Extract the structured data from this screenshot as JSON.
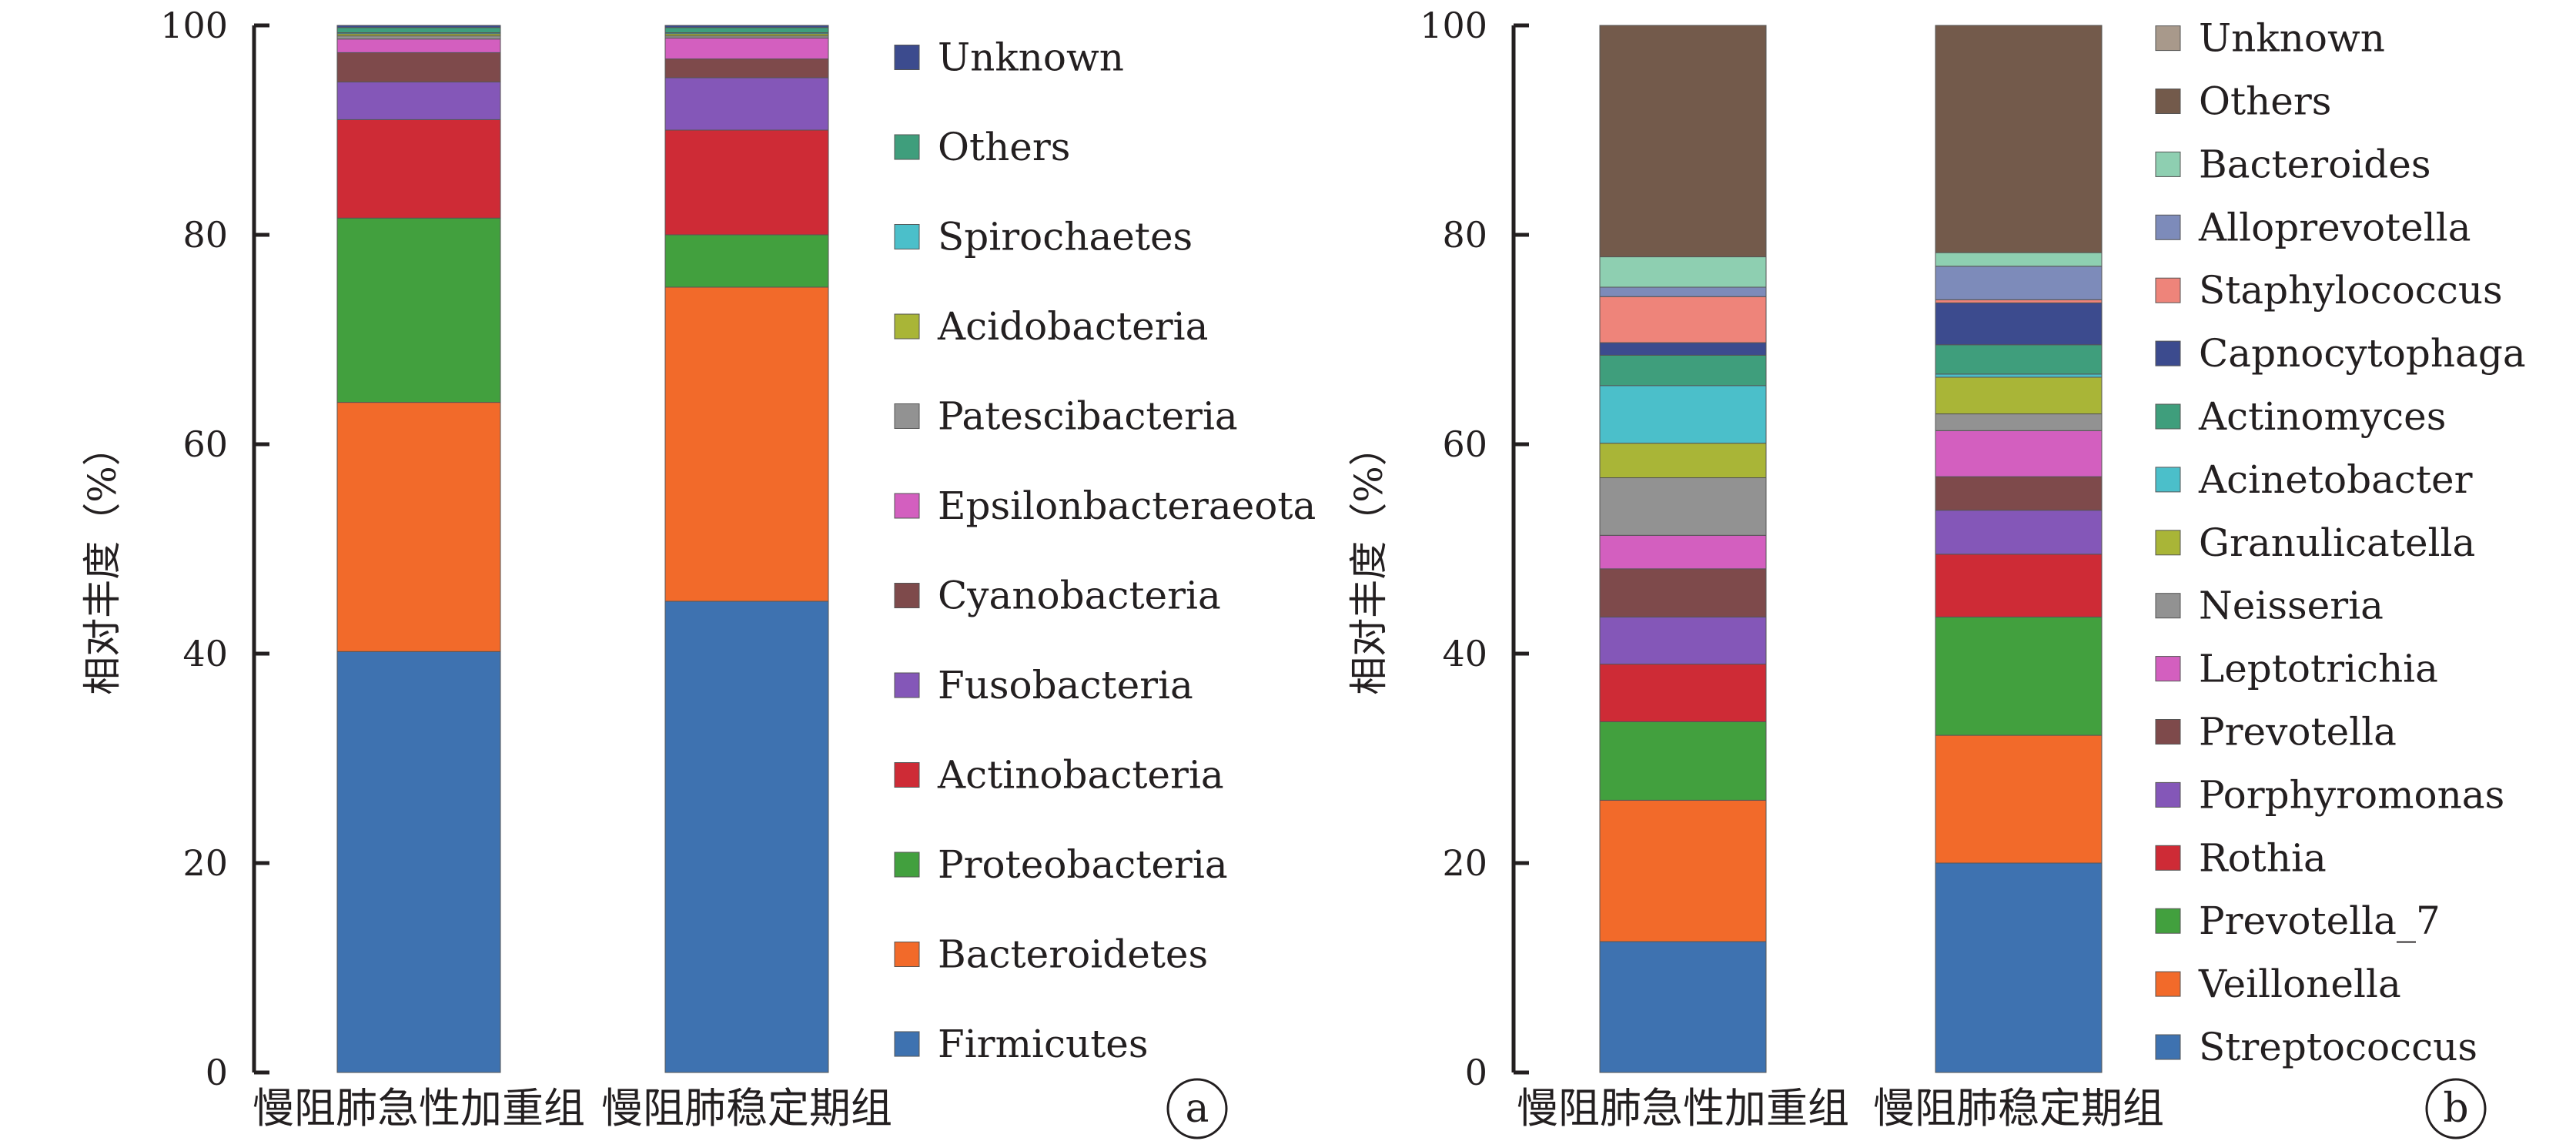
{
  "colors": {
    "axis": "#231f20",
    "bar_stroke": "#555555"
  },
  "chart_data": [
    {
      "type": "bar",
      "stacked": true,
      "panel_label": "a",
      "ylabel": "相对丰度（%）",
      "ylim": [
        0,
        100
      ],
      "yticks": [
        0,
        20,
        40,
        60,
        80,
        100
      ],
      "categories": [
        "慢阻肺急性加重组",
        "慢阻肺稳定期组"
      ],
      "legend_position": "right",
      "series": [
        {
          "name": "Firmicutes",
          "color": "#3e72b0",
          "values": [
            40.2,
            45.0
          ]
        },
        {
          "name": "Bacteroidetes",
          "color": "#f26a2a",
          "values": [
            23.8,
            30.0
          ]
        },
        {
          "name": "Proteobacteria",
          "color": "#42a03e",
          "values": [
            17.6,
            5.0
          ]
        },
        {
          "name": "Actinobacteria",
          "color": "#ce2b36",
          "values": [
            9.4,
            10.0
          ]
        },
        {
          "name": "Fusobacteria",
          "color": "#8457b8",
          "values": [
            3.6,
            5.0
          ]
        },
        {
          "name": "Cyanobacteria",
          "color": "#7e4a4b",
          "values": [
            2.8,
            1.8
          ]
        },
        {
          "name": "Epsilonbacteraeota",
          "color": "#d35fbf",
          "values": [
            1.3,
            2.0
          ]
        },
        {
          "name": "Patescibacteria",
          "color": "#929292",
          "values": [
            0.3,
            0.2
          ]
        },
        {
          "name": "Acidobacteria",
          "color": "#a9b537",
          "values": [
            0.2,
            0.2
          ]
        },
        {
          "name": "Spirochaetes",
          "color": "#4bbfca",
          "values": [
            0.1,
            0.1
          ]
        },
        {
          "name": "Others",
          "color": "#3f9e7c",
          "values": [
            0.5,
            0.5
          ]
        },
        {
          "name": "Unknown",
          "color": "#3c4b8e",
          "values": [
            0.2,
            0.2
          ]
        }
      ]
    },
    {
      "type": "bar",
      "stacked": true,
      "panel_label": "b",
      "ylabel": "相对丰度（%）",
      "ylim": [
        0,
        100
      ],
      "yticks": [
        0,
        20,
        40,
        60,
        80,
        100
      ],
      "categories": [
        "慢阻肺急性加重组",
        "慢阻肺稳定期组"
      ],
      "legend_position": "right",
      "series": [
        {
          "name": "Streptococcus",
          "color": "#3e72b0",
          "values": [
            12.5,
            20.0
          ]
        },
        {
          "name": "Veillonella",
          "color": "#f26a2a",
          "values": [
            13.5,
            12.2
          ]
        },
        {
          "name": "Prevotella_7",
          "color": "#42a03e",
          "values": [
            7.5,
            11.3
          ]
        },
        {
          "name": "Rothia",
          "color": "#ce2b36",
          "values": [
            5.5,
            6.0
          ]
        },
        {
          "name": "Porphyromonas",
          "color": "#8457b8",
          "values": [
            4.5,
            4.2
          ]
        },
        {
          "name": "Prevotella",
          "color": "#7e4a4b",
          "values": [
            4.6,
            3.2
          ]
        },
        {
          "name": "Leptotrichia",
          "color": "#d35fbf",
          "values": [
            3.2,
            4.4
          ]
        },
        {
          "name": "Neisseria",
          "color": "#929292",
          "values": [
            5.5,
            1.6
          ]
        },
        {
          "name": "Granulicatella",
          "color": "#a9b537",
          "values": [
            3.3,
            3.5
          ]
        },
        {
          "name": "Acinetobacter",
          "color": "#4bbfca",
          "values": [
            5.5,
            0.3
          ]
        },
        {
          "name": "Actinomyces",
          "color": "#3f9e7c",
          "values": [
            2.9,
            2.8
          ]
        },
        {
          "name": "Capnocytophaga",
          "color": "#3c4b8e",
          "values": [
            1.2,
            4.0
          ]
        },
        {
          "name": "Staphylococcus",
          "color": "#ee847a",
          "values": [
            4.4,
            0.3
          ]
        },
        {
          "name": "Alloprevotella",
          "color": "#7d8bba",
          "values": [
            0.9,
            3.2
          ]
        },
        {
          "name": "Bacteroides",
          "color": "#8ecfb1",
          "values": [
            2.9,
            1.3
          ]
        },
        {
          "name": "Others",
          "color": "#735a4b",
          "values": [
            22.1,
            21.7
          ]
        },
        {
          "name": "Unknown",
          "color": "#a8998b",
          "values": [
            0.0,
            0.0
          ]
        }
      ]
    }
  ]
}
